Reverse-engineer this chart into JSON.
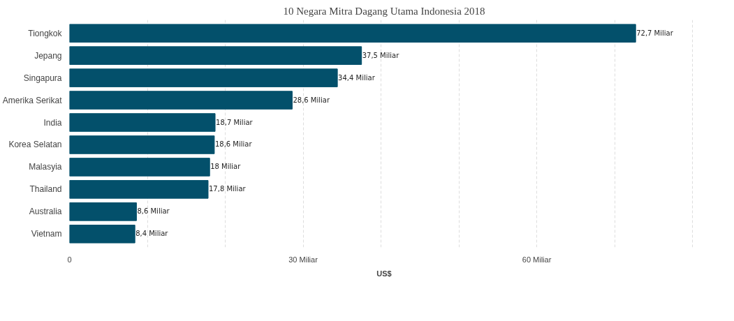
{
  "chart_data": {
    "type": "bar",
    "orientation": "horizontal",
    "title": "10 Negara Mitra Dagang Utama Indonesia 2018",
    "xlabel": "US$",
    "categories": [
      "Tiongkok",
      "Jepang",
      "Singapura",
      "Amerika Serikat",
      "India",
      "Korea Selatan",
      "Malasyia",
      "Thailand",
      "Australia",
      "Vietnam"
    ],
    "values": [
      72.7,
      37.5,
      34.4,
      28.6,
      18.7,
      18.6,
      18,
      17.8,
      8.6,
      8.4
    ],
    "value_labels": [
      "72,7 Miliar",
      "37,5 Miliar",
      "34,4 Miliar",
      "28,6 Miliar",
      "18,7 Miliar",
      "18,6 Miliar",
      "18 Miliar",
      "17,8 Miliar",
      "8,6 Miliar",
      "8,4 Miliar"
    ],
    "color": "#03506b",
    "xlim": [
      0,
      80
    ],
    "xticks": [
      0,
      {
        "value": 10,
        "label": null
      },
      {
        "value": 20,
        "label": null
      },
      {
        "value": 30,
        "label": "30 Miliar"
      },
      {
        "value": 40,
        "label": null
      },
      {
        "value": 50,
        "label": null
      },
      {
        "value": 60,
        "label": "60 Miliar"
      },
      {
        "value": 70,
        "label": null
      },
      {
        "value": 80,
        "label": null
      }
    ],
    "grid": "x"
  }
}
